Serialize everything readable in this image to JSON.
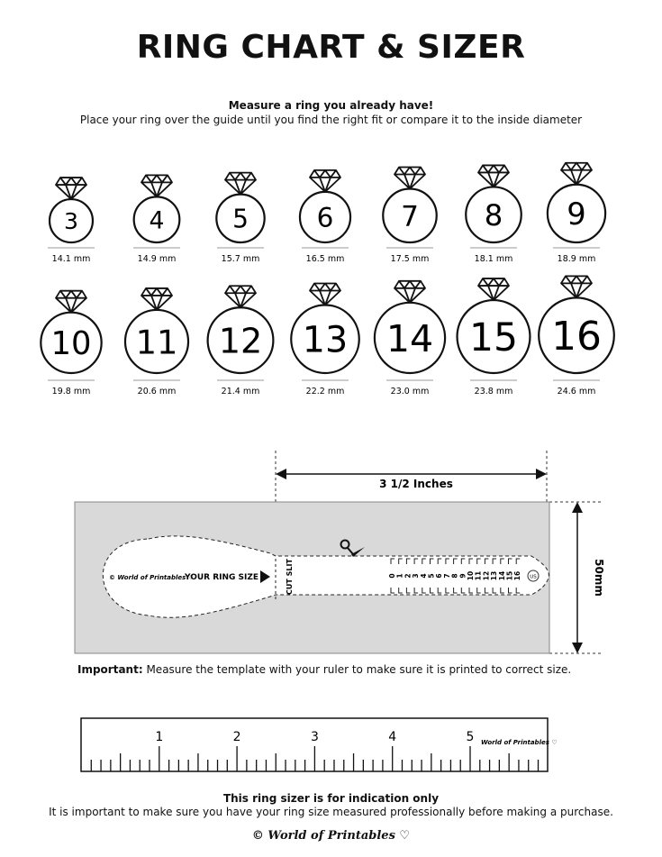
{
  "title": "RING CHART & SIZER",
  "intro": {
    "heading": "Measure a ring you already have!",
    "text": "Place your ring over the guide until you find the right fit or compare it to the inside diameter"
  },
  "rings": [
    {
      "size": "3",
      "diameter": "14.1 mm",
      "mm": 14.1
    },
    {
      "size": "4",
      "diameter": "14.9 mm",
      "mm": 14.9
    },
    {
      "size": "5",
      "diameter": "15.7 mm",
      "mm": 15.7
    },
    {
      "size": "6",
      "diameter": "16.5 mm",
      "mm": 16.5
    },
    {
      "size": "7",
      "diameter": "17.5 mm",
      "mm": 17.5
    },
    {
      "size": "8",
      "diameter": "18.1 mm",
      "mm": 18.1
    },
    {
      "size": "9",
      "diameter": "18.9 mm",
      "mm": 18.9
    },
    {
      "size": "10",
      "diameter": "19.8 mm",
      "mm": 19.8
    },
    {
      "size": "11",
      "diameter": "20.6 mm",
      "mm": 20.6
    },
    {
      "size": "12",
      "diameter": "21.4 mm",
      "mm": 21.4
    },
    {
      "size": "13",
      "diameter": "22.2 mm",
      "mm": 22.2
    },
    {
      "size": "14",
      "diameter": "23.0 mm",
      "mm": 23.0
    },
    {
      "size": "15",
      "diameter": "23.8 mm",
      "mm": 23.8
    },
    {
      "size": "16",
      "diameter": "24.6 mm",
      "mm": 24.6
    }
  ],
  "sizer": {
    "width_label": "3 1/2 Inches",
    "height_label": "50mm",
    "brand": "© World of Printables ♡",
    "your_ring_size": "YOUR RING SIZE",
    "cut_slit": "CUT SLIT",
    "scale": [
      "0",
      "1",
      "2",
      "3",
      "4",
      "5",
      "6",
      "7",
      "8",
      "9",
      "10",
      "11",
      "12",
      "13",
      "14",
      "15",
      "16"
    ],
    "unit": "US"
  },
  "important": {
    "label": "Important:",
    "text": " Measure the template with your ruler to make sure it is printed to correct size."
  },
  "ruler": {
    "labels": [
      "1",
      "2",
      "3",
      "4",
      "5"
    ],
    "brand": "World of Printables ♡"
  },
  "footer": {
    "heading": "This ring sizer is for indication only",
    "text": "It is important to make sure you have your ring size measured professionally before making a purchase.",
    "brand": "© World of Printables ♡"
  }
}
